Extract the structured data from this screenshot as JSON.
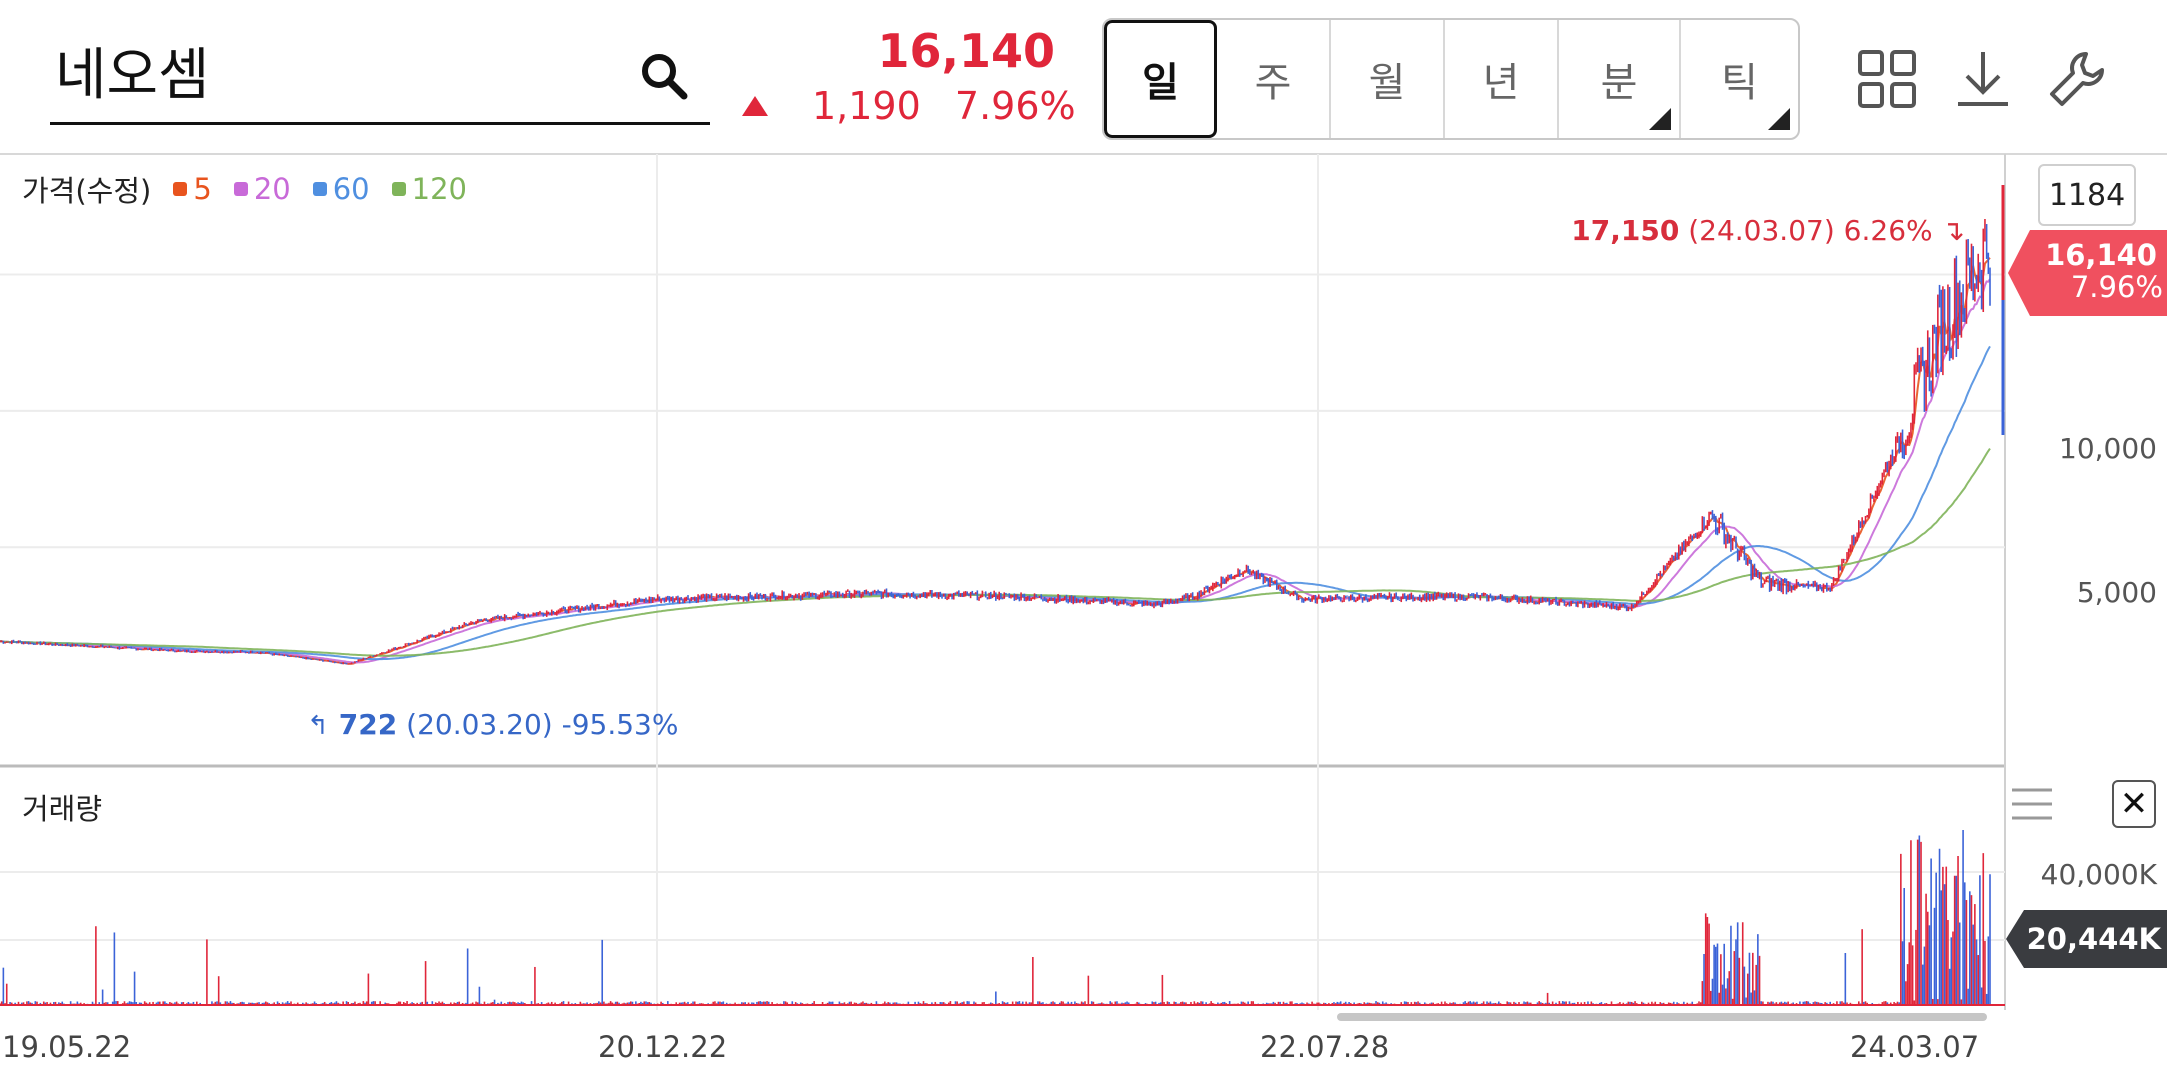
{
  "header": {
    "stock_name": "네오셈",
    "price": "16,140",
    "change": "1,190",
    "change_pct": "7.96%",
    "tabs": [
      {
        "label": "일",
        "active": true,
        "dropdown": false
      },
      {
        "label": "주",
        "active": false,
        "dropdown": false
      },
      {
        "label": "월",
        "active": false,
        "dropdown": false
      },
      {
        "label": "년",
        "active": false,
        "dropdown": false
      },
      {
        "label": "분",
        "active": false,
        "dropdown": true
      },
      {
        "label": "틱",
        "active": false,
        "dropdown": true
      }
    ],
    "icons": [
      "search-icon",
      "grid-icon",
      "download-icon",
      "wrench-icon"
    ]
  },
  "price_panel": {
    "title": "가격(수정)",
    "legend": [
      {
        "label": "5",
        "color": "#e8541e"
      },
      {
        "label": "20",
        "color": "#c86ad8"
      },
      {
        "label": "60",
        "color": "#4f8fe0"
      },
      {
        "label": "120",
        "color": "#7fb45a"
      }
    ],
    "candle_count": "1184",
    "high_price": "17,150",
    "high_date": "(24.03.07)",
    "high_pct": "6.26%",
    "low_price": "722",
    "low_date": "(20.03.20)",
    "low_pct": "-95.53%",
    "current_flag_price": "16,140",
    "current_flag_pct": "7.96%",
    "y_ticks": [
      "10,000",
      "5,000"
    ]
  },
  "volume_panel": {
    "title": "거래량",
    "y_ticks": [
      "40,000K"
    ],
    "current_flag": "20,444K"
  },
  "x_ticks": [
    "19.05.22",
    "20.12.22",
    "22.07.28",
    "24.03.07"
  ],
  "colors": {
    "up": "#e0263a",
    "down": "#3b63d8",
    "accent": "#f0505f",
    "vol_flag": "#3a3c40"
  },
  "chart_data": {
    "type": "candlestick",
    "title": "가격(수정)",
    "x_ticks": [
      "19.05.22",
      "20.12.22",
      "22.07.28",
      "24.03.07"
    ],
    "y_ticks": [
      5000,
      10000
    ],
    "ylim": [
      0,
      20000
    ],
    "series": [
      {
        "name": "5"
      },
      {
        "name": "20"
      },
      {
        "name": "60"
      },
      {
        "name": "120"
      }
    ],
    "approx_close_path": [
      {
        "date": "19.05.22",
        "close": 1550
      },
      {
        "date": "19.09",
        "close": 1200
      },
      {
        "date": "20.01",
        "close": 1150
      },
      {
        "date": "20.03.20",
        "close": 722
      },
      {
        "date": "20.06",
        "close": 2300
      },
      {
        "date": "20.09",
        "close": 3100
      },
      {
        "date": "20.12.22",
        "close": 3300
      },
      {
        "date": "21.04",
        "close": 3200
      },
      {
        "date": "21.09",
        "close": 2900
      },
      {
        "date": "22.03",
        "close": 3200
      },
      {
        "date": "22.06",
        "close": 4200
      },
      {
        "date": "22.07.28",
        "close": 3100
      },
      {
        "date": "23.01",
        "close": 3200
      },
      {
        "date": "23.06",
        "close": 2800
      },
      {
        "date": "23.08",
        "close": 6200
      },
      {
        "date": "23.10",
        "close": 3700
      },
      {
        "date": "23.12",
        "close": 3500
      },
      {
        "date": "24.01",
        "close": 9000
      },
      {
        "date": "24.02",
        "close": 13000
      },
      {
        "date": "24.03.07",
        "close": 16140
      }
    ],
    "high": {
      "value": 17150,
      "date": "24.03.07",
      "pct": 6.26
    },
    "low": {
      "value": 722,
      "date": "20.03.20",
      "pct": -95.53
    },
    "volume": {
      "y_ticks": [
        "40,000K"
      ],
      "last": "20,444K"
    }
  }
}
